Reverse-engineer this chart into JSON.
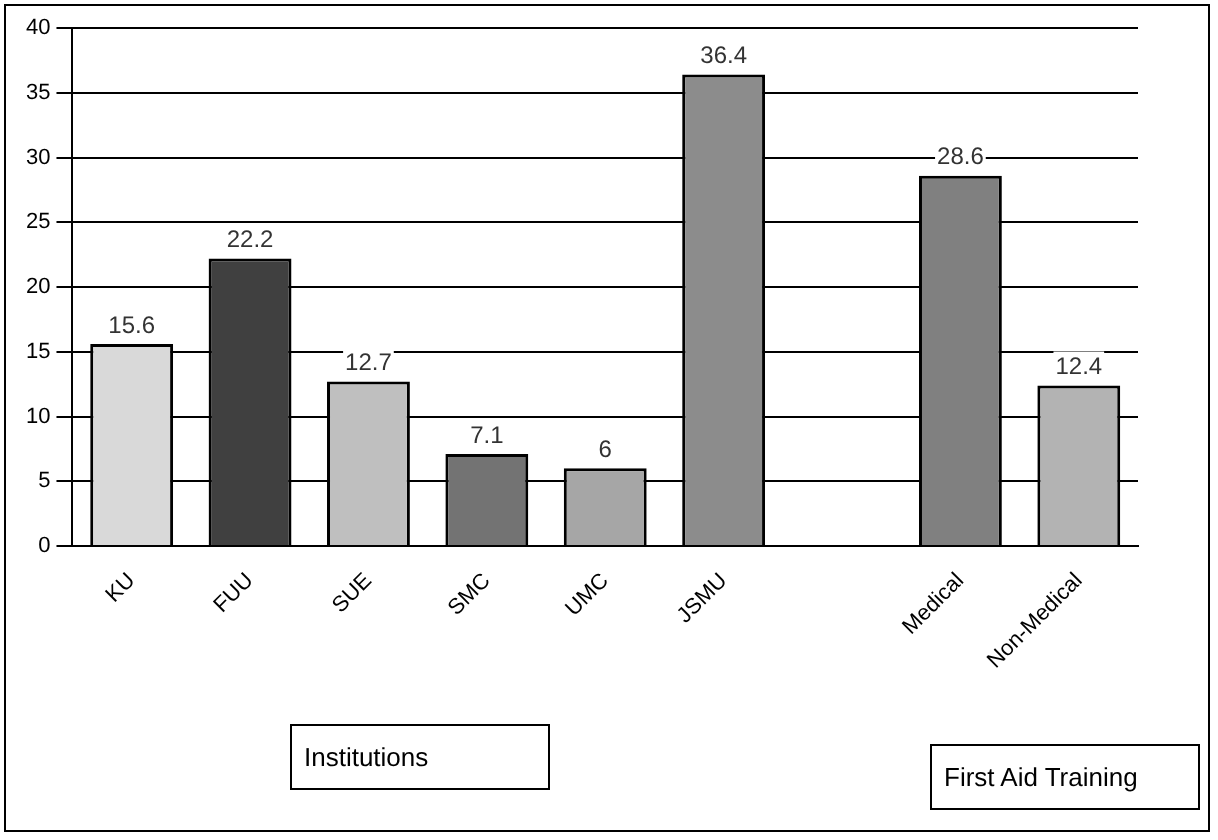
{
  "chart_data": {
    "type": "bar",
    "categories": [
      "KU",
      "FUU",
      "SUE",
      "SMC",
      "UMC",
      "JSMU",
      null,
      "Medical",
      "Non-Medical"
    ],
    "values": [
      15.6,
      22.2,
      12.7,
      7.1,
      6,
      36.4,
      null,
      28.6,
      12.4
    ],
    "colors": [
      "#d9d9d9",
      "#404040",
      "#bfbfbf",
      "#737373",
      "#a6a6a6",
      "#8c8c8c",
      "#ffffff",
      "#808080",
      "#b3b3b3"
    ],
    "ylim": [
      0,
      40
    ],
    "yticks": [
      0,
      5,
      10,
      15,
      20,
      25,
      30,
      35,
      40
    ],
    "grid": "y",
    "data_labels": true,
    "legend": false,
    "annotations": [
      "Institutions",
      "First Aid Training"
    ]
  }
}
